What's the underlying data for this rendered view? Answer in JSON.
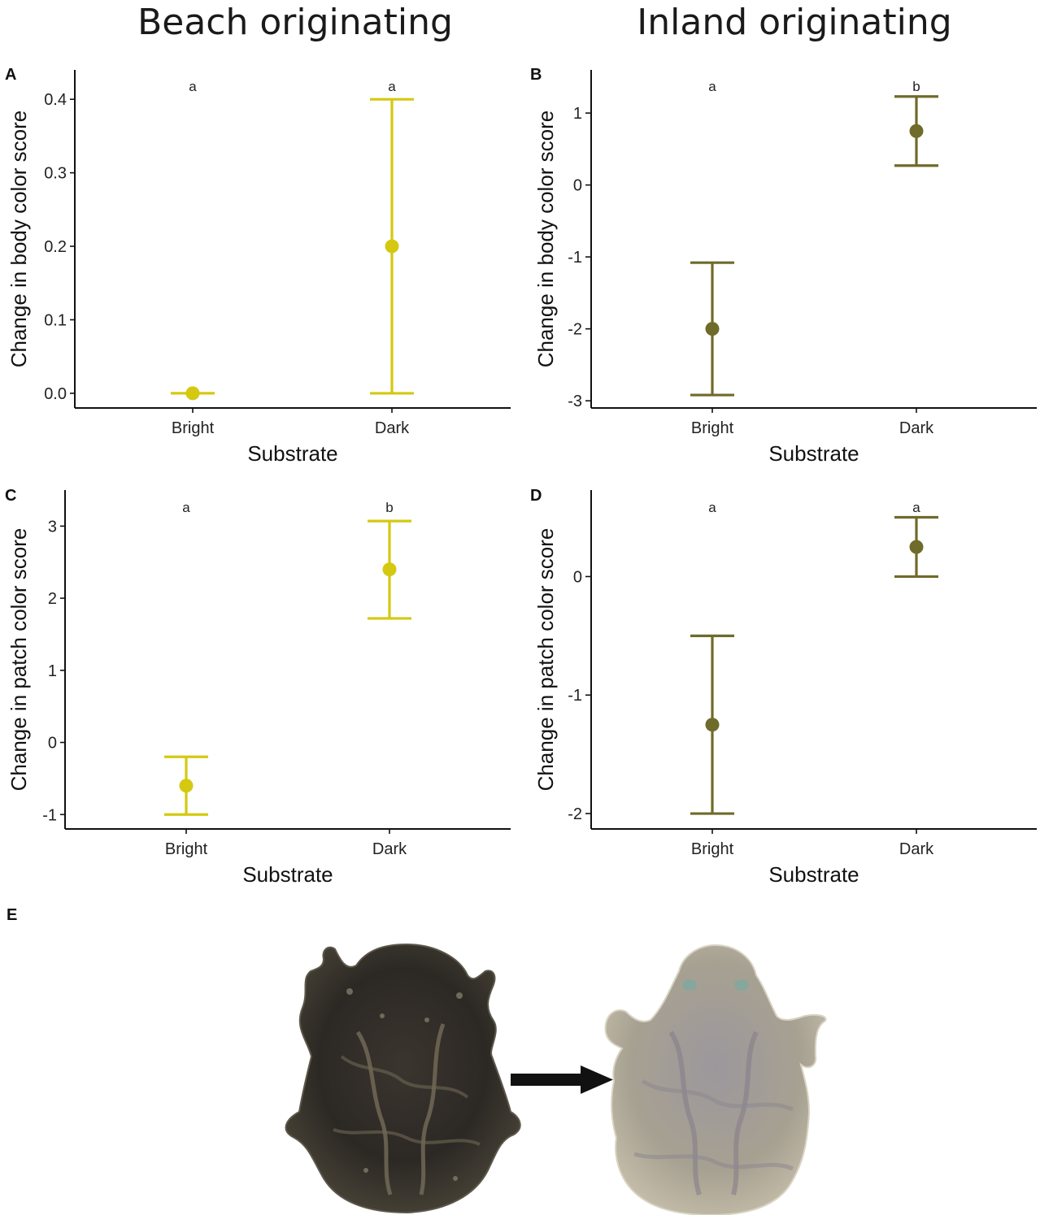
{
  "column_titles": {
    "beach": "Beach originating",
    "inland": "Inland originating"
  },
  "colors": {
    "beach": "#d4c910",
    "inland": "#6f6b2a"
  },
  "panel_e": {
    "letter": "E",
    "photo_left": "dark-toad-photo",
    "arrow": "right-arrow-icon",
    "photo_right": "light-toad-photo"
  },
  "chart_data": [
    {
      "panel": "A",
      "type": "scatter",
      "group": "Beach originating",
      "color": "#d4c910",
      "xlabel": "Substrate",
      "ylabel": "Change in body color score",
      "categories": [
        "Bright",
        "Dark"
      ],
      "values": [
        0.0,
        0.2
      ],
      "error_low": [
        0.0,
        0.0
      ],
      "error_high": [
        0.0,
        0.4
      ],
      "significance": [
        "a",
        "a"
      ],
      "ylim": [
        -0.02,
        0.44
      ],
      "yticks": [
        0.0,
        0.1,
        0.2,
        0.3,
        0.4
      ],
      "ytick_labels": [
        "0.0",
        "0.1",
        "0.2",
        "0.3",
        "0.4"
      ],
      "grid": false
    },
    {
      "panel": "B",
      "type": "scatter",
      "group": "Inland originating",
      "color": "#6f6b2a",
      "xlabel": "Substrate",
      "ylabel": "Change in body color score",
      "categories": [
        "Bright",
        "Dark"
      ],
      "values": [
        -2.0,
        0.75
      ],
      "error_low": [
        -2.92,
        0.27
      ],
      "error_high": [
        -1.08,
        1.23
      ],
      "significance": [
        "a",
        "b"
      ],
      "ylim": [
        -3.1,
        1.6
      ],
      "yticks": [
        -3,
        -2,
        -1,
        0,
        1
      ],
      "ytick_labels": [
        "-3",
        "-2",
        "-1",
        "0",
        "1"
      ],
      "grid": false
    },
    {
      "panel": "C",
      "type": "scatter",
      "group": "Beach originating",
      "color": "#d4c910",
      "xlabel": "Substrate",
      "ylabel": "Change in patch color score",
      "categories": [
        "Bright",
        "Dark"
      ],
      "values": [
        -0.6,
        2.4
      ],
      "error_low": [
        -1.0,
        1.72
      ],
      "error_high": [
        -0.2,
        3.07
      ],
      "significance": [
        "a",
        "b"
      ],
      "ylim": [
        -1.2,
        3.5
      ],
      "yticks": [
        -1,
        0,
        1,
        2,
        3
      ],
      "ytick_labels": [
        "-1",
        "0",
        "1",
        "2",
        "3"
      ],
      "grid": false
    },
    {
      "panel": "D",
      "type": "scatter",
      "group": "Inland originating",
      "color": "#6f6b2a",
      "xlabel": "Substrate",
      "ylabel": "Change in patch color score",
      "categories": [
        "Bright",
        "Dark"
      ],
      "values": [
        -1.25,
        0.25
      ],
      "error_low": [
        -2.0,
        0.0
      ],
      "error_high": [
        -0.5,
        0.5
      ],
      "significance": [
        "a",
        "a"
      ],
      "ylim": [
        -2.13,
        0.73
      ],
      "yticks": [
        -2,
        -1,
        0
      ],
      "ytick_labels": [
        "-2",
        "-1",
        "0"
      ],
      "grid": false
    }
  ]
}
